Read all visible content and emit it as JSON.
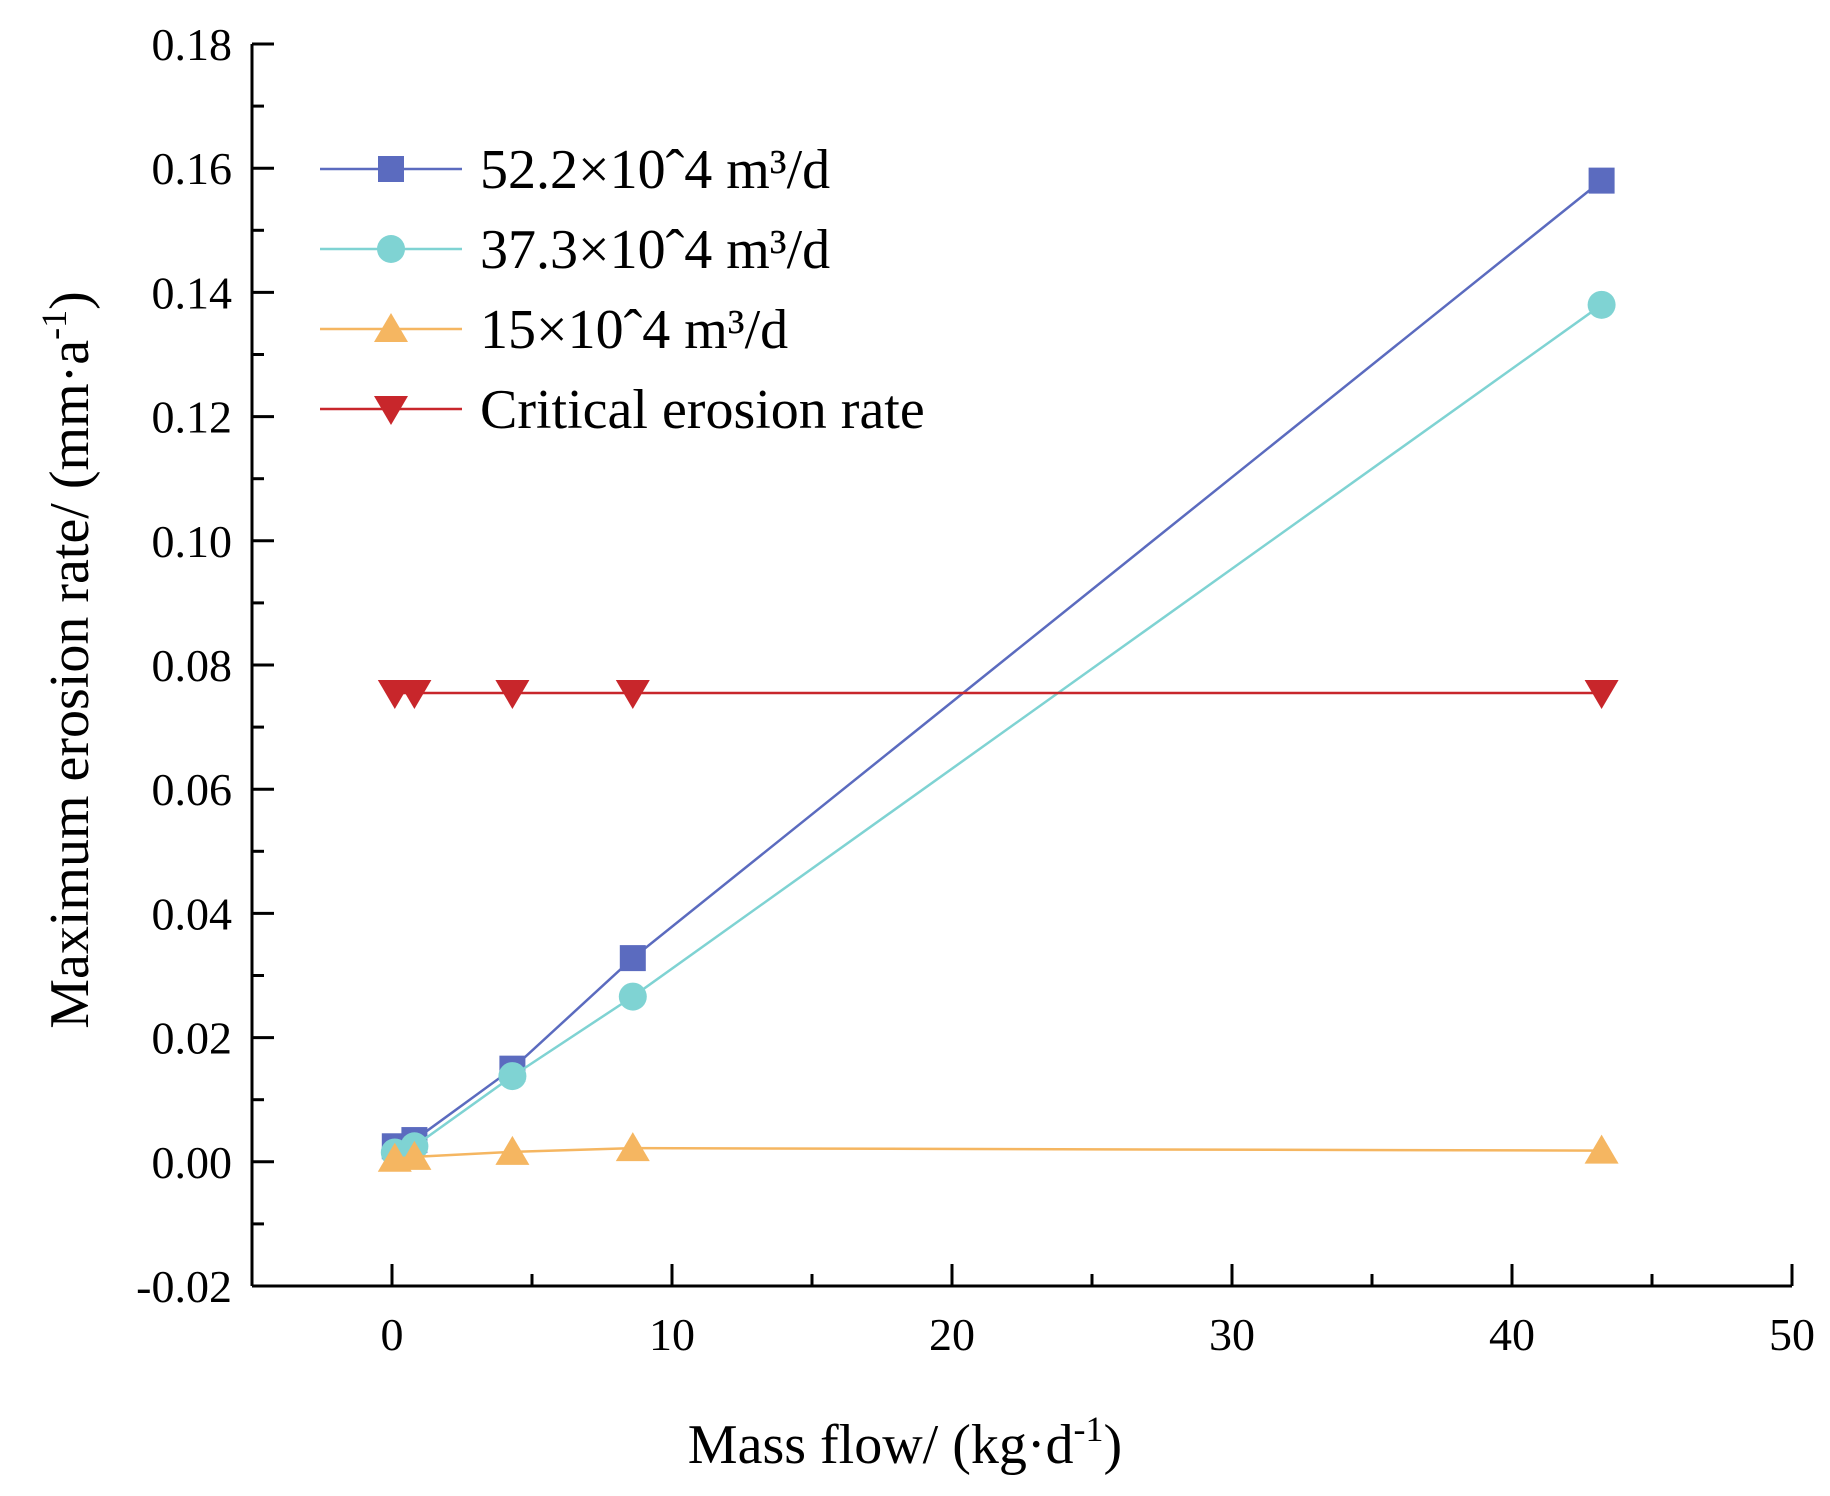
{
  "chart_data": {
    "type": "line",
    "title": "",
    "xlabel": "Mass flow/ (kg·d",
    "xlabel_sup": "-1",
    "xlabel_close": ")",
    "ylabel": "Maximum erosion rate/ (mm·a",
    "ylabel_sup": "-1",
    "ylabel_close": ")",
    "xlim": [
      -5,
      50
    ],
    "ylim": [
      -0.02,
      0.18
    ],
    "xticks": [
      0,
      10,
      20,
      30,
      40,
      50
    ],
    "xtick_labels": [
      "0",
      "10",
      "20",
      "30",
      "40",
      "50"
    ],
    "yticks": [
      -0.02,
      0.0,
      0.02,
      0.04,
      0.06,
      0.08,
      0.1,
      0.12,
      0.14,
      0.16,
      0.18
    ],
    "ytick_labels": [
      "-0.02",
      "0.00",
      "0.02",
      "0.04",
      "0.06",
      "0.08",
      "0.10",
      "0.12",
      "0.14",
      "0.16",
      "0.18"
    ],
    "grid": false,
    "legend_position": "top-left",
    "series": [
      {
        "name": "52.2×10ˆ4 m³/d",
        "color": "#5B6BBF",
        "marker": "square",
        "x": [
          0.1,
          0.8,
          4.3,
          8.6,
          43.2
        ],
        "y": [
          0.0025,
          0.0035,
          0.015,
          0.0328,
          0.158
        ]
      },
      {
        "name": "37.3×10ˆ4 m³/d",
        "color": "#7FD3D3",
        "marker": "circle",
        "x": [
          0.1,
          0.8,
          4.3,
          8.6,
          43.2
        ],
        "y": [
          0.0015,
          0.0025,
          0.0138,
          0.0266,
          0.138
        ]
      },
      {
        "name": "15×10ˆ4 m³/d",
        "color": "#F5B661",
        "marker": "triangle-up",
        "x": [
          0.1,
          0.8,
          4.3,
          8.6,
          43.2
        ],
        "y": [
          0.0005,
          0.0008,
          0.0016,
          0.0022,
          0.0018
        ]
      },
      {
        "name": "Critical erosion rate",
        "color": "#C8262B",
        "marker": "triangle-down",
        "x": [
          0.1,
          0.8,
          4.3,
          8.6,
          43.2
        ],
        "y": [
          0.0755,
          0.0755,
          0.0755,
          0.0755,
          0.0755
        ]
      }
    ]
  }
}
